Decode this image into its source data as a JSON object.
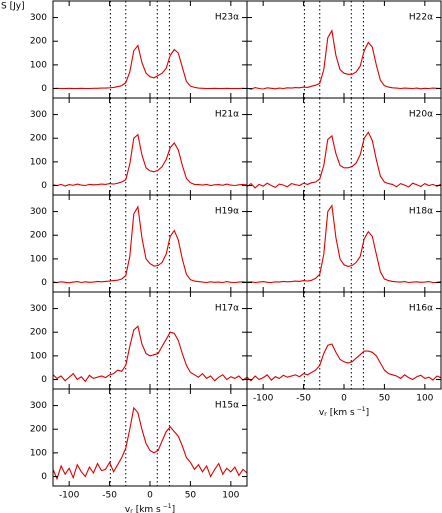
{
  "chart_data": [
    {
      "type": "line",
      "title": "H23α",
      "ylabel": "S [Jy]",
      "color": "#e00000",
      "xlim": [
        -120,
        120
      ],
      "ylim": [
        -40,
        370
      ],
      "xticks": [
        -100,
        -50,
        0,
        50,
        100
      ],
      "yticks": [
        0,
        100,
        200,
        300
      ],
      "vlines": [
        -49,
        -30,
        9,
        24
      ],
      "x": [
        -120,
        -115,
        -110,
        -105,
        -100,
        -95,
        -90,
        -85,
        -80,
        -75,
        -70,
        -65,
        -60,
        -55,
        -50,
        -45,
        -40,
        -35,
        -30,
        -25,
        -20,
        -15,
        -10,
        -5,
        0,
        5,
        10,
        15,
        20,
        25,
        30,
        35,
        40,
        45,
        50,
        55,
        60,
        65,
        70,
        75,
        80,
        85,
        90,
        95,
        100,
        105,
        110,
        115,
        120
      ],
      "values": [
        0,
        1,
        0,
        0,
        1,
        0,
        0,
        1,
        0,
        0,
        1,
        1,
        2,
        2,
        3,
        5,
        8,
        12,
        25,
        70,
        160,
        182,
        110,
        65,
        50,
        45,
        55,
        65,
        85,
        140,
        165,
        150,
        90,
        30,
        10,
        5,
        2,
        1,
        0,
        0,
        1,
        0,
        0,
        1,
        0,
        0,
        0,
        1,
        0
      ]
    },
    {
      "type": "line",
      "title": "H22α",
      "color": "#e00000",
      "xlim": [
        -120,
        120
      ],
      "ylim": [
        -40,
        370
      ],
      "xticks": [
        -100,
        -50,
        0,
        50,
        100
      ],
      "yticks": [
        0,
        100,
        200,
        300
      ],
      "vlines": [
        -49,
        -30,
        9,
        24
      ],
      "x": [
        -120,
        -115,
        -110,
        -105,
        -100,
        -95,
        -90,
        -85,
        -80,
        -75,
        -70,
        -65,
        -60,
        -55,
        -50,
        -45,
        -40,
        -35,
        -30,
        -25,
        -20,
        -15,
        -10,
        -5,
        0,
        5,
        10,
        15,
        20,
        25,
        30,
        35,
        40,
        45,
        50,
        55,
        60,
        65,
        70,
        75,
        80,
        85,
        90,
        95,
        100,
        105,
        110,
        115,
        120
      ],
      "values": [
        2,
        -3,
        4,
        0,
        -2,
        3,
        1,
        -1,
        2,
        0,
        3,
        2,
        4,
        3,
        6,
        5,
        10,
        14,
        22,
        80,
        215,
        245,
        140,
        80,
        65,
        60,
        60,
        70,
        95,
        160,
        195,
        175,
        100,
        35,
        12,
        6,
        3,
        2,
        0,
        2,
        1,
        0,
        2,
        -1,
        1,
        0,
        2,
        1,
        0
      ]
    },
    {
      "type": "line",
      "title": "H21α",
      "color": "#e00000",
      "xlim": [
        -120,
        120
      ],
      "ylim": [
        -40,
        370
      ],
      "xticks": [
        -100,
        -50,
        0,
        50,
        100
      ],
      "yticks": [
        0,
        100,
        200,
        300
      ],
      "vlines": [
        -49,
        -30,
        9,
        24
      ],
      "x": [
        -120,
        -115,
        -110,
        -105,
        -100,
        -95,
        -90,
        -85,
        -80,
        -75,
        -70,
        -65,
        -60,
        -55,
        -50,
        -45,
        -40,
        -35,
        -30,
        -25,
        -20,
        -15,
        -10,
        -5,
        0,
        5,
        10,
        15,
        20,
        25,
        30,
        35,
        40,
        45,
        50,
        55,
        60,
        65,
        70,
        75,
        80,
        85,
        90,
        95,
        100,
        105,
        110,
        115,
        120
      ],
      "values": [
        3,
        0,
        5,
        -2,
        4,
        1,
        6,
        2,
        0,
        5,
        3,
        4,
        6,
        5,
        8,
        6,
        10,
        15,
        25,
        90,
        200,
        215,
        130,
        75,
        62,
        58,
        65,
        80,
        110,
        160,
        180,
        150,
        85,
        30,
        12,
        5,
        4,
        2,
        5,
        0,
        3,
        4,
        1,
        6,
        2,
        0,
        3,
        5,
        2
      ]
    },
    {
      "type": "line",
      "title": "H20α",
      "color": "#e00000",
      "xlim": [
        -120,
        120
      ],
      "ylim": [
        -40,
        370
      ],
      "xticks": [
        -100,
        -50,
        0,
        50,
        100
      ],
      "yticks": [
        0,
        100,
        200,
        300
      ],
      "vlines": [
        -49,
        -30,
        9,
        24
      ],
      "x": [
        -120,
        -115,
        -110,
        -105,
        -100,
        -95,
        -90,
        -85,
        -80,
        -75,
        -70,
        -65,
        -60,
        -55,
        -50,
        -45,
        -40,
        -35,
        -30,
        -25,
        -20,
        -15,
        -10,
        -5,
        0,
        5,
        10,
        15,
        20,
        25,
        30,
        35,
        40,
        45,
        50,
        55,
        60,
        65,
        70,
        75,
        80,
        85,
        90,
        95,
        100,
        105,
        110,
        115,
        120
      ],
      "values": [
        -5,
        8,
        -10,
        5,
        -3,
        10,
        0,
        -8,
        6,
        2,
        -5,
        8,
        4,
        0,
        10,
        5,
        12,
        15,
        28,
        85,
        195,
        210,
        135,
        85,
        75,
        75,
        80,
        95,
        130,
        200,
        225,
        190,
        110,
        40,
        15,
        8,
        5,
        -5,
        8,
        2,
        -6,
        10,
        3,
        -4,
        8,
        0,
        5,
        -3,
        6
      ]
    },
    {
      "type": "line",
      "title": "H19α",
      "color": "#e00000",
      "xlim": [
        -120,
        120
      ],
      "ylim": [
        -40,
        370
      ],
      "xticks": [
        -100,
        -50,
        0,
        50,
        100
      ],
      "yticks": [
        0,
        100,
        200,
        300
      ],
      "vlines": [
        -49,
        -30,
        9,
        24
      ],
      "x": [
        -120,
        -115,
        -110,
        -105,
        -100,
        -95,
        -90,
        -85,
        -80,
        -75,
        -70,
        -65,
        -60,
        -55,
        -50,
        -45,
        -40,
        -35,
        -30,
        -25,
        -20,
        -15,
        -10,
        -5,
        0,
        5,
        10,
        15,
        20,
        25,
        30,
        35,
        40,
        45,
        50,
        55,
        60,
        65,
        70,
        75,
        80,
        85,
        90,
        95,
        100,
        105,
        110,
        115,
        120
      ],
      "values": [
        2,
        0,
        3,
        1,
        -1,
        2,
        4,
        0,
        3,
        1,
        2,
        5,
        3,
        5,
        6,
        8,
        10,
        15,
        30,
        110,
        290,
        320,
        190,
        100,
        80,
        70,
        72,
        85,
        120,
        195,
        220,
        180,
        100,
        35,
        12,
        6,
        4,
        2,
        0,
        3,
        1,
        2,
        0,
        4,
        1,
        0,
        2,
        3,
        1
      ]
    },
    {
      "type": "line",
      "title": "H18α",
      "color": "#e00000",
      "xlim": [
        -120,
        120
      ],
      "ylim": [
        -40,
        370
      ],
      "xticks": [
        -100,
        -50,
        0,
        50,
        100
      ],
      "yticks": [
        0,
        100,
        200,
        300
      ],
      "vlines": [
        -49,
        -30,
        9,
        24
      ],
      "x": [
        -120,
        -115,
        -110,
        -105,
        -100,
        -95,
        -90,
        -85,
        -80,
        -75,
        -70,
        -65,
        -60,
        -55,
        -50,
        -45,
        -40,
        -35,
        -30,
        -25,
        -20,
        -15,
        -10,
        -5,
        0,
        5,
        10,
        15,
        20,
        25,
        30,
        35,
        40,
        45,
        50,
        55,
        60,
        65,
        70,
        75,
        80,
        85,
        90,
        95,
        100,
        105,
        110,
        115,
        120
      ],
      "values": [
        1,
        3,
        0,
        2,
        4,
        1,
        0,
        3,
        2,
        5,
        3,
        4,
        6,
        5,
        8,
        6,
        10,
        18,
        35,
        120,
        300,
        325,
        190,
        100,
        75,
        68,
        72,
        85,
        110,
        185,
        215,
        195,
        120,
        45,
        15,
        8,
        5,
        3,
        2,
        4,
        0,
        2,
        3,
        1,
        2,
        4,
        0,
        1,
        3
      ]
    },
    {
      "type": "line",
      "title": "H17α",
      "color": "#e00000",
      "xlim": [
        -120,
        120
      ],
      "ylim": [
        -40,
        370
      ],
      "xticks": [
        -100,
        -50,
        0,
        50,
        100
      ],
      "yticks": [
        0,
        100,
        200,
        300
      ],
      "vlines": [
        -49,
        -30,
        9,
        24
      ],
      "x": [
        -120,
        -115,
        -110,
        -105,
        -100,
        -95,
        -90,
        -85,
        -80,
        -75,
        -70,
        -65,
        -60,
        -55,
        -50,
        -45,
        -40,
        -35,
        -30,
        -25,
        -20,
        -15,
        -10,
        -5,
        0,
        5,
        10,
        15,
        20,
        25,
        30,
        35,
        40,
        45,
        50,
        55,
        60,
        65,
        70,
        75,
        80,
        85,
        90,
        95,
        100,
        105,
        110,
        115,
        120
      ],
      "values": [
        20,
        5,
        15,
        -5,
        10,
        25,
        0,
        12,
        -8,
        18,
        5,
        10,
        15,
        8,
        20,
        25,
        40,
        35,
        60,
        140,
        210,
        225,
        150,
        110,
        100,
        105,
        110,
        140,
        170,
        200,
        195,
        165,
        110,
        60,
        30,
        20,
        10,
        25,
        5,
        15,
        -5,
        10,
        20,
        0,
        12,
        5,
        15,
        -3,
        10
      ]
    },
    {
      "type": "line",
      "title": "H16α",
      "xlabel": {
        "main": "v",
        "sub": "r",
        "unit": "[km s",
        "sup": "−1",
        "close": "]"
      },
      "color": "#e00000",
      "xlim": [
        -120,
        120
      ],
      "ylim": [
        -40,
        370
      ],
      "xticks": [
        -100,
        -50,
        0,
        50,
        100
      ],
      "yticks": [
        0,
        100,
        200,
        300
      ],
      "vlines": [
        -49,
        -30,
        9,
        24
      ],
      "x": [
        -120,
        -115,
        -110,
        -105,
        -100,
        -95,
        -90,
        -85,
        -80,
        -75,
        -70,
        -65,
        -60,
        -55,
        -50,
        -45,
        -40,
        -35,
        -30,
        -25,
        -20,
        -15,
        -10,
        -5,
        0,
        5,
        10,
        15,
        20,
        25,
        30,
        35,
        40,
        45,
        50,
        55,
        60,
        65,
        70,
        75,
        80,
        85,
        90,
        95,
        100,
        105,
        110,
        115,
        120
      ],
      "values": [
        10,
        -5,
        15,
        0,
        8,
        20,
        -3,
        12,
        5,
        18,
        10,
        15,
        20,
        12,
        25,
        20,
        30,
        40,
        60,
        110,
        145,
        150,
        115,
        85,
        75,
        70,
        75,
        90,
        105,
        120,
        120,
        115,
        100,
        70,
        40,
        25,
        20,
        15,
        5,
        20,
        8,
        0,
        12,
        18,
        5,
        10,
        -2,
        15,
        8
      ]
    },
    {
      "type": "line",
      "title": "H15α",
      "xlabel": {
        "main": "v",
        "sub": "r",
        "unit": "[km s",
        "sup": "−1",
        "close": "]"
      },
      "color": "#e00000",
      "xlim": [
        -120,
        120
      ],
      "ylim": [
        -40,
        370
      ],
      "xticks": [
        -100,
        -50,
        0,
        50,
        100
      ],
      "yticks": [
        0,
        100,
        200,
        300
      ],
      "vlines": [
        -49,
        -30,
        9,
        24
      ],
      "x": [
        -120,
        -115,
        -110,
        -105,
        -100,
        -95,
        -90,
        -85,
        -80,
        -75,
        -70,
        -65,
        -60,
        -55,
        -50,
        -45,
        -40,
        -35,
        -30,
        -25,
        -20,
        -15,
        -10,
        -5,
        0,
        5,
        10,
        15,
        20,
        25,
        30,
        35,
        40,
        45,
        50,
        55,
        60,
        65,
        70,
        75,
        80,
        85,
        90,
        95,
        100,
        105,
        110,
        115,
        120
      ],
      "values": [
        30,
        -10,
        45,
        10,
        35,
        -5,
        50,
        20,
        0,
        40,
        15,
        55,
        25,
        30,
        60,
        20,
        50,
        80,
        120,
        200,
        290,
        270,
        200,
        140,
        110,
        100,
        110,
        150,
        190,
        210,
        190,
        170,
        130,
        80,
        60,
        30,
        50,
        20,
        45,
        0,
        30,
        55,
        10,
        35,
        20,
        40,
        5,
        30,
        15
      ]
    }
  ]
}
